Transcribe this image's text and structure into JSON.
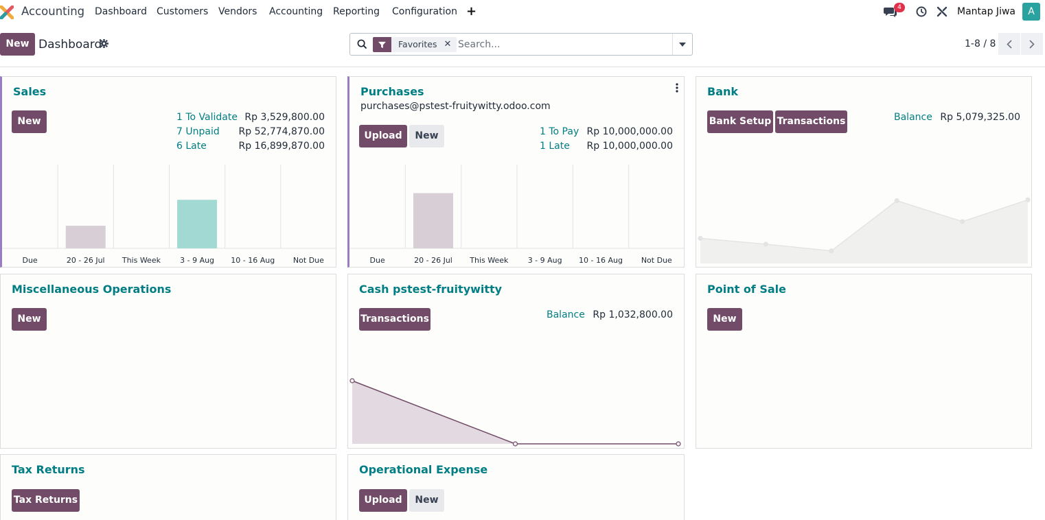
{
  "navbar": {
    "app_name": "Accounting",
    "menu": [
      "Dashboard",
      "Customers",
      "Vendors",
      "Accounting",
      "Reporting",
      "Configuration"
    ],
    "add_icon": "+",
    "messages_count": "4",
    "user_name": "Mantap Jiwa",
    "avatar_letter": "A"
  },
  "control": {
    "new_label": "New",
    "breadcrumb": "Dashboard",
    "facet_label": "Favorites",
    "search_placeholder": "Search...",
    "pager_text": "1-8 / 8"
  },
  "sales": {
    "title": "Sales",
    "new_label": "New",
    "stats": [
      {
        "label": "1 To Validate",
        "value": "Rp 3,529,800.00"
      },
      {
        "label": "7 Unpaid",
        "value": "Rp 52,774,870.00"
      },
      {
        "label": "6 Late",
        "value": "Rp 16,899,870.00"
      }
    ]
  },
  "purchases": {
    "title": "Purchases",
    "email": "purchases@pstest-fruitywitty.odoo.com",
    "upload_label": "Upload",
    "new_label": "New",
    "stats": [
      {
        "label": "1 To Pay",
        "value": "Rp 10,000,000.00"
      },
      {
        "label": "1 Late",
        "value": "Rp 10,000,000.00"
      }
    ]
  },
  "bank": {
    "title": "Bank",
    "setup_label": "Bank Setup",
    "transactions_label": "Transactions",
    "balance_label": "Balance",
    "balance_value": "Rp 5,079,325.00"
  },
  "misc": {
    "title": "Miscellaneous Operations",
    "new_label": "New"
  },
  "cash": {
    "title": "Cash pstest-fruitywitty",
    "transactions_label": "Transactions",
    "balance_label": "Balance",
    "balance_value": "Rp 1,032,800.00"
  },
  "pos": {
    "title": "Point of Sale",
    "new_label": "New"
  },
  "tax": {
    "title": "Tax Returns",
    "button_label": "Tax Returns"
  },
  "opex": {
    "title": "Operational Expense",
    "upload_label": "Upload",
    "new_label": "New"
  },
  "colors": {
    "brand": "#714b67",
    "link": "#017e84",
    "bar_past": "#d8cfd6",
    "bar_future": "#a3d9d3"
  },
  "chart_data": [
    {
      "type": "bar",
      "categories": [
        "Due",
        "20 - 26 Jul",
        "This Week",
        "3 - 9 Aug",
        "10 - 16 Aug",
        "Not Due"
      ],
      "values": [
        0,
        0.27,
        0,
        0.58,
        0,
        0
      ],
      "bar_colors": [
        "#d8cfd6",
        "#d8cfd6",
        "#d8cfd6",
        "#a3d9d3",
        "#a3d9d3",
        "#a3d9d3"
      ],
      "title": "",
      "ylim": [
        0,
        1
      ]
    },
    {
      "type": "bar",
      "categories": [
        "Due",
        "20 - 26 Jul",
        "This Week",
        "3 - 9 Aug",
        "10 - 16 Aug",
        "Not Due"
      ],
      "values": [
        0,
        0.66,
        0,
        0,
        0,
        0
      ],
      "bar_colors": [
        "#d8cfd6",
        "#d8cfd6",
        "#d8cfd6",
        "#a3d9d3",
        "#a3d9d3",
        "#a3d9d3"
      ],
      "title": "",
      "ylim": [
        0,
        1
      ]
    },
    {
      "type": "area",
      "values": [
        0.3,
        0.23,
        0.15,
        0.75,
        0.5,
        0.76
      ],
      "ylim": [
        0,
        1
      ],
      "color": "#e6e6e6"
    },
    {
      "type": "area",
      "values": [
        1.0,
        0.0,
        0.0
      ],
      "ylim": [
        0,
        1
      ],
      "color": "#714b67"
    }
  ]
}
